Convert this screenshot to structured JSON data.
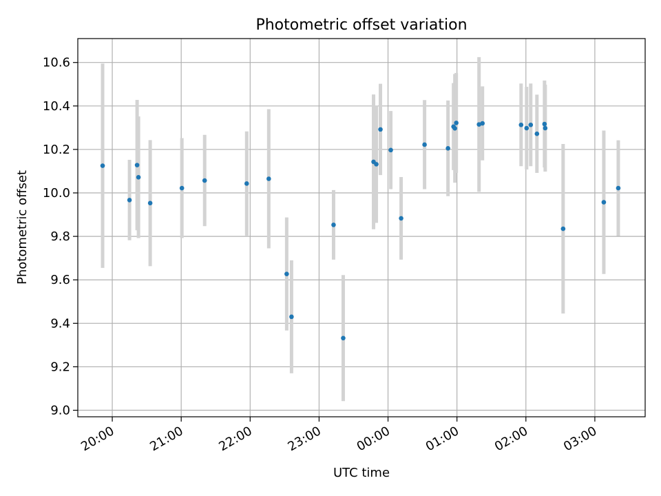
{
  "chart_data": {
    "type": "scatter",
    "title": "Photometric offset variation",
    "xlabel": "UTC time",
    "ylabel": "Photometric offset",
    "grid": true,
    "x_unit": "hours since 19:00 UTC",
    "xlim": [
      0.5,
      8.73
    ],
    "ylim": [
      8.97,
      10.71
    ],
    "xticks": [
      {
        "value": 1,
        "label": "20:00"
      },
      {
        "value": 2,
        "label": "21:00"
      },
      {
        "value": 3,
        "label": "22:00"
      },
      {
        "value": 4,
        "label": "23:00"
      },
      {
        "value": 5,
        "label": "00:00"
      },
      {
        "value": 6,
        "label": "01:00"
      },
      {
        "value": 7,
        "label": "02:00"
      },
      {
        "value": 8,
        "label": "03:00"
      }
    ],
    "yticks": [
      {
        "value": 9.0,
        "label": "9.0"
      },
      {
        "value": 9.2,
        "label": "9.2"
      },
      {
        "value": 9.4,
        "label": "9.4"
      },
      {
        "value": 9.6,
        "label": "9.6"
      },
      {
        "value": 9.8,
        "label": "9.8"
      },
      {
        "value": 10.0,
        "label": "10.0"
      },
      {
        "value": 10.2,
        "label": "10.2"
      },
      {
        "value": 10.4,
        "label": "10.4"
      },
      {
        "value": 10.6,
        "label": "10.6"
      }
    ],
    "marker_color": "#1f77b4",
    "errorbar_color": "#d3d3d3",
    "points": [
      {
        "x": 0.86,
        "y": 10.125,
        "err": 0.47
      },
      {
        "x": 1.25,
        "y": 9.967,
        "err": 0.185
      },
      {
        "x": 1.36,
        "y": 10.128,
        "err": 0.3
      },
      {
        "x": 1.38,
        "y": 10.072,
        "err": 0.28
      },
      {
        "x": 1.55,
        "y": 9.953,
        "err": 0.29
      },
      {
        "x": 2.01,
        "y": 10.022,
        "err": 0.23
      },
      {
        "x": 2.34,
        "y": 10.057,
        "err": 0.21
      },
      {
        "x": 2.95,
        "y": 10.043,
        "err": 0.24
      },
      {
        "x": 3.27,
        "y": 10.065,
        "err": 0.32
      },
      {
        "x": 3.53,
        "y": 9.627,
        "err": 0.26
      },
      {
        "x": 3.6,
        "y": 9.43,
        "err": 0.26
      },
      {
        "x": 4.21,
        "y": 9.853,
        "err": 0.16
      },
      {
        "x": 4.35,
        "y": 9.332,
        "err": 0.29
      },
      {
        "x": 4.79,
        "y": 10.143,
        "err": 0.31
      },
      {
        "x": 4.83,
        "y": 10.132,
        "err": 0.27
      },
      {
        "x": 4.89,
        "y": 10.292,
        "err": 0.21
      },
      {
        "x": 5.04,
        "y": 10.197,
        "err": 0.18
      },
      {
        "x": 5.19,
        "y": 9.883,
        "err": 0.19
      },
      {
        "x": 5.53,
        "y": 10.222,
        "err": 0.205
      },
      {
        "x": 5.87,
        "y": 10.205,
        "err": 0.22
      },
      {
        "x": 5.95,
        "y": 10.305,
        "err": 0.2
      },
      {
        "x": 5.97,
        "y": 10.297,
        "err": 0.25
      },
      {
        "x": 5.99,
        "y": 10.322,
        "err": 0.23
      },
      {
        "x": 6.32,
        "y": 10.315,
        "err": 0.31
      },
      {
        "x": 6.37,
        "y": 10.32,
        "err": 0.17
      },
      {
        "x": 6.93,
        "y": 10.313,
        "err": 0.19
      },
      {
        "x": 7.01,
        "y": 10.298,
        "err": 0.19
      },
      {
        "x": 7.07,
        "y": 10.313,
        "err": 0.19
      },
      {
        "x": 7.16,
        "y": 10.272,
        "err": 0.18
      },
      {
        "x": 7.27,
        "y": 10.317,
        "err": 0.2
      },
      {
        "x": 7.28,
        "y": 10.298,
        "err": 0.2
      },
      {
        "x": 7.54,
        "y": 9.835,
        "err": 0.39
      },
      {
        "x": 8.13,
        "y": 9.957,
        "err": 0.33
      },
      {
        "x": 8.34,
        "y": 10.022,
        "err": 0.22
      }
    ]
  }
}
